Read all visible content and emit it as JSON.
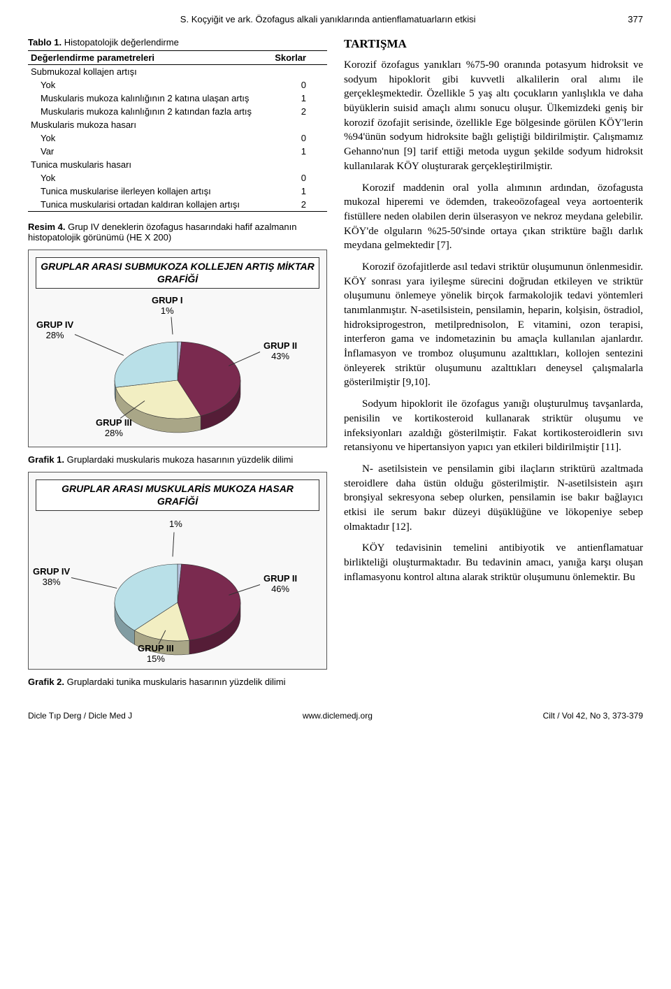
{
  "header": {
    "left": "S. Koçyiğit ve ark. Özofagus alkali yanıklarında antienflamatuarların etkisi",
    "page": "377"
  },
  "table1": {
    "caption_bold": "Tablo 1.",
    "caption_rest": " Histopatolojik değerlendirme",
    "col_param": "Değerlendirme parametreleri",
    "col_score": "Skorlar",
    "rows": [
      {
        "label": "Submukozal kollajen artışı",
        "score": "",
        "indent": 0
      },
      {
        "label": "Yok",
        "score": "0",
        "indent": 1
      },
      {
        "label": "Muskularis mukoza kalınlığının 2 katına ulaşan artış",
        "score": "1",
        "indent": 1
      },
      {
        "label": "Muskularis mukoza kalınlığının 2 katından fazla artış",
        "score": "2",
        "indent": 1
      },
      {
        "label": "Muskularis mukoza hasarı",
        "score": "",
        "indent": 0
      },
      {
        "label": "Yok",
        "score": "0",
        "indent": 1
      },
      {
        "label": "Var",
        "score": "1",
        "indent": 1
      },
      {
        "label": "Tunica muskularis hasarı",
        "score": "",
        "indent": 0
      },
      {
        "label": "Yok",
        "score": "0",
        "indent": 1
      },
      {
        "label": "Tunica muskularise ilerleyen kollajen artışı",
        "score": "1",
        "indent": 1
      },
      {
        "label": "Tunica muskularisi ortadan kaldıran kollajen artışı",
        "score": "2",
        "indent": 1
      }
    ]
  },
  "resim4": {
    "bold": "Resim 4.",
    "rest": " Grup IV deneklerin özofagus hasarındaki hafif azalmanın histopatolojik görünümü (HE X 200)"
  },
  "chart1": {
    "title": "GRUPLAR ARASI SUBMUKOZA KOLLEJEN ARTIŞ MİKTAR GRAFİĞİ",
    "slices": [
      {
        "label": "GRUP I",
        "pct": "1%",
        "value": 1,
        "color": "#b9c6e2"
      },
      {
        "label": "GRUP II",
        "pct": "43%",
        "value": 43,
        "color": "#7a2a4f"
      },
      {
        "label": "GRUP III",
        "pct": "28%",
        "value": 28,
        "color": "#f2eec2"
      },
      {
        "label": "GRUP IV",
        "pct": "28%",
        "value": 28,
        "color": "#b9e0e8"
      }
    ],
    "bg": "#f8f8f8",
    "caption_bold": "Grafik 1.",
    "caption_rest": " Gruplardaki muskularis mukoza hasarının yüzdelik dilimi"
  },
  "chart2": {
    "title": "GRUPLAR ARASI MUSKULARİS MUKOZA HASAR GRAFİĞİ",
    "slices": [
      {
        "label": "",
        "pct": "1%",
        "value": 1,
        "color": "#b9c6e2"
      },
      {
        "label": "GRUP II",
        "pct": "46%",
        "value": 46,
        "color": "#7a2a4f"
      },
      {
        "label": "GRUP III",
        "pct": "15%",
        "value": 15,
        "color": "#f2eec2"
      },
      {
        "label": "GRUP IV",
        "pct": "38%",
        "value": 38,
        "color": "#b9e0e8"
      }
    ],
    "bg": "#f8f8f8",
    "caption_bold": "Grafik 2.",
    "caption_rest": " Gruplardaki tunika muskularis hasarının yüzdelik dilimi"
  },
  "discussion": {
    "title": "TARTIŞMA",
    "paragraphs": [
      "Korozif özofagus yanıkları %75-90 oranında potasyum hidroksit ve sodyum hipoklorit gibi kuvvetli alkalilerin oral alımı ile gerçekleşmektedir. Özellikle 5 yaş altı çocukların yanlışlıkla ve daha büyüklerin suisid amaçlı alımı sonucu oluşur. Ülkemizdeki geniş bir korozif özofajit serisinde, özellikle Ege bölgesinde görülen KÖY'lerin %94'ünün sodyum hidroksite bağlı geliştiği bildirilmiştir. Çalışmamız Gehanno'nun [9] tarif ettiği metoda uygun şekilde sodyum hidroksit kullanılarak KÖY oluşturarak gerçekleştirilmiştir.",
      "Korozif maddenin oral yolla alımının ardından, özofagusta mukozal hiperemi ve ödemden, trakeoözofageal veya aortoenterik fistüllere neden olabilen derin ülserasyon ve nekroz meydana gelebilir. KÖY'de olguların %25-50'sinde ortaya çıkan striktüre bağlı darlık meydana gelmektedir [7].",
      "Korozif özofajitlerde asıl tedavi striktür oluşumunun önlenmesidir. KÖY sonrası yara iyileşme sürecini doğrudan etkileyen ve striktür oluşumunu önlemeye yönelik birçok farmakolojik tedavi yöntemleri tanımlanmıştır. N-asetilsistein, pensilamin, heparin, kolşisin, östradiol, hidroksiprogestron, metilprednisolon, E vitamini, ozon terapisi, interferon gama ve indometazinin bu amaçla kullanılan ajanlardır. İnflamasyon ve tromboz oluşumunu azalttıkları, kollojen sentezini önleyerek striktür oluşumunu azalttıkları deneysel çalışmalarla gösterilmiştir [9,10].",
      "Sodyum hipoklorit ile özofagus yanığı oluşturulmuş tavşanlarda, penisilin ve kortikosteroid kullanarak striktür oluşumu ve infeksiyonları azaldığı gösterilmiştir. Fakat kortikosteroidlerin sıvı retansiyonu ve hipertansiyon yapıcı yan etkileri bildirilmiştir [11].",
      "N- asetilsistein ve pensilamin gibi ilaçların striktürü azaltmada steroidlere daha üstün olduğu gösterilmiştir. N-asetilsistein aşırı bronşiyal sekresyona sebep olurken, pensilamin ise bakır bağlayıcı etkisi ile serum bakır düzeyi düşüklüğüne ve lökopeniye sebep olmaktadır [12].",
      "KÖY tedavisinin temelini antibiyotik ve antienflamatuar birlikteliği oluşturmaktadır. Bu tedavinin amacı, yanığa karşı oluşan inflamasyonu kontrol altına alarak striktür oluşumunu önlemektir. Bu"
    ]
  },
  "footer": {
    "left": "Dicle Tıp Derg / Dicle Med J",
    "center": "www.diclemedj.org",
    "right": "Cilt / Vol 42, No 3, 373-379"
  }
}
